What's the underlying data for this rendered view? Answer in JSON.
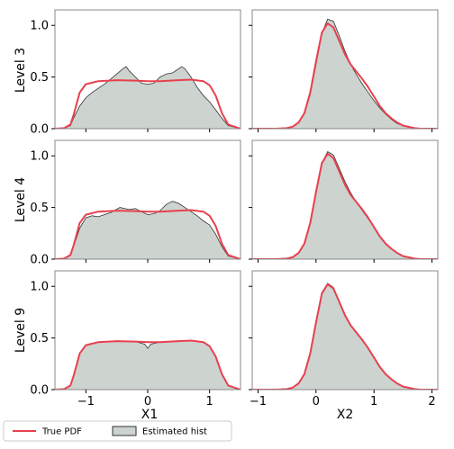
{
  "chart_data": {
    "type": "area",
    "row_labels": [
      "Level 3",
      "Level 4",
      "Level 9"
    ],
    "column_xlabels": [
      "X1",
      "X2"
    ],
    "ylim": [
      0,
      1.15
    ],
    "yticks": [
      0.0,
      0.5,
      1.0
    ],
    "ytick_labels": [
      "0.0",
      "0.5",
      "1.0"
    ],
    "xlim": [
      [
        -1.5,
        1.5
      ],
      [
        -1.1,
        2.1
      ]
    ],
    "xticks": [
      [
        -1,
        0,
        1
      ],
      [
        -1,
        0,
        1,
        2
      ]
    ],
    "xtick_labels": [
      [
        "−1",
        "0",
        "1"
      ],
      [
        "−1",
        "0",
        "1",
        "2"
      ]
    ],
    "legend": {
      "placement": "below",
      "true_pdf_label": "True PDF",
      "hist_label": "Estimated hist"
    },
    "colors": {
      "true_pdf": "#e8404e",
      "hist_fill": "#cdd3cf",
      "hist_edge": "#333333",
      "axes": "#888888"
    },
    "true_pdf": [
      {
        "x": [
          -1.5,
          -1.35,
          -1.25,
          -1.2,
          -1.1,
          -1.0,
          -0.8,
          -0.5,
          -0.2,
          0.0,
          0.2,
          0.5,
          0.7,
          0.9,
          1.0,
          1.1,
          1.2,
          1.3,
          1.5
        ],
        "y": [
          0,
          0.005,
          0.04,
          0.13,
          0.35,
          0.43,
          0.46,
          0.47,
          0.465,
          0.46,
          0.46,
          0.47,
          0.475,
          0.46,
          0.42,
          0.32,
          0.15,
          0.04,
          0
        ]
      },
      {
        "x": [
          -1.1,
          -0.7,
          -0.5,
          -0.4,
          -0.3,
          -0.2,
          -0.1,
          0.0,
          0.1,
          0.2,
          0.3,
          0.4,
          0.5,
          0.6,
          0.7,
          0.8,
          0.9,
          1.0,
          1.1,
          1.2,
          1.3,
          1.4,
          1.5,
          1.7,
          1.8,
          2.1
        ],
        "y": [
          0,
          0,
          0.005,
          0.02,
          0.06,
          0.15,
          0.35,
          0.65,
          0.93,
          1.02,
          0.98,
          0.85,
          0.72,
          0.62,
          0.55,
          0.48,
          0.4,
          0.31,
          0.22,
          0.15,
          0.1,
          0.06,
          0.03,
          0.005,
          0,
          0
        ]
      }
    ],
    "estimated_hist": [
      [
        {
          "x": [
            -1.5,
            -1.35,
            -1.25,
            -1.2,
            -1.1,
            -1.0,
            -0.9,
            -0.7,
            -0.5,
            -0.4,
            -0.35,
            -0.3,
            -0.2,
            -0.1,
            0.0,
            0.1,
            0.2,
            0.3,
            0.4,
            0.5,
            0.55,
            0.6,
            0.7,
            0.8,
            0.9,
            1.0,
            1.1,
            1.2,
            1.3,
            1.5
          ],
          "y": [
            0,
            0.005,
            0.03,
            0.1,
            0.22,
            0.3,
            0.35,
            0.43,
            0.53,
            0.58,
            0.6,
            0.56,
            0.5,
            0.44,
            0.43,
            0.44,
            0.5,
            0.53,
            0.54,
            0.58,
            0.6,
            0.58,
            0.5,
            0.4,
            0.32,
            0.26,
            0.18,
            0.1,
            0.03,
            0
          ]
        },
        {
          "x": [
            -1.1,
            -0.5,
            -0.4,
            -0.3,
            -0.2,
            -0.1,
            0.0,
            0.1,
            0.2,
            0.3,
            0.4,
            0.5,
            0.6,
            0.7,
            0.8,
            0.9,
            1.0,
            1.1,
            1.2,
            1.3,
            1.4,
            1.5,
            1.7,
            1.8,
            2.1
          ],
          "y": [
            0,
            0.005,
            0.02,
            0.06,
            0.15,
            0.33,
            0.62,
            0.92,
            1.06,
            1.04,
            0.9,
            0.75,
            0.62,
            0.52,
            0.43,
            0.35,
            0.27,
            0.2,
            0.14,
            0.09,
            0.05,
            0.03,
            0.005,
            0,
            0
          ]
        }
      ],
      [
        {
          "x": [
            -1.5,
            -1.35,
            -1.25,
            -1.2,
            -1.1,
            -1.0,
            -0.9,
            -0.8,
            -0.6,
            -0.45,
            -0.3,
            -0.2,
            -0.1,
            0.0,
            0.1,
            0.2,
            0.3,
            0.4,
            0.5,
            0.6,
            0.7,
            0.8,
            0.9,
            1.0,
            1.1,
            1.2,
            1.3,
            1.5
          ],
          "y": [
            0,
            0.005,
            0.04,
            0.12,
            0.3,
            0.4,
            0.42,
            0.41,
            0.45,
            0.5,
            0.48,
            0.49,
            0.46,
            0.43,
            0.44,
            0.47,
            0.53,
            0.56,
            0.54,
            0.5,
            0.46,
            0.42,
            0.37,
            0.33,
            0.24,
            0.12,
            0.03,
            0
          ]
        },
        {
          "x": [
            -1.1,
            -0.5,
            -0.4,
            -0.3,
            -0.2,
            -0.1,
            0.0,
            0.1,
            0.2,
            0.3,
            0.4,
            0.5,
            0.6,
            0.7,
            0.8,
            0.9,
            1.0,
            1.1,
            1.2,
            1.3,
            1.4,
            1.5,
            1.7,
            1.8,
            2.1
          ],
          "y": [
            0,
            0.005,
            0.02,
            0.06,
            0.15,
            0.34,
            0.64,
            0.93,
            1.04,
            1.01,
            0.88,
            0.75,
            0.64,
            0.55,
            0.47,
            0.39,
            0.31,
            0.22,
            0.15,
            0.1,
            0.06,
            0.03,
            0.005,
            0,
            0
          ]
        }
      ],
      [
        {
          "x": [
            -1.5,
            -1.35,
            -1.25,
            -1.2,
            -1.1,
            -1.0,
            -0.8,
            -0.5,
            -0.2,
            -0.05,
            0.0,
            0.05,
            0.2,
            0.5,
            0.7,
            0.9,
            1.0,
            1.1,
            1.2,
            1.3,
            1.5
          ],
          "y": [
            0,
            0.005,
            0.04,
            0.13,
            0.35,
            0.43,
            0.46,
            0.47,
            0.465,
            0.44,
            0.4,
            0.44,
            0.46,
            0.47,
            0.475,
            0.46,
            0.42,
            0.32,
            0.15,
            0.04,
            0
          ]
        },
        {
          "x": [
            -1.1,
            -0.7,
            -0.5,
            -0.4,
            -0.3,
            -0.2,
            -0.1,
            0.0,
            0.1,
            0.2,
            0.3,
            0.4,
            0.5,
            0.6,
            0.7,
            0.8,
            0.9,
            1.0,
            1.1,
            1.2,
            1.3,
            1.4,
            1.5,
            1.7,
            1.8,
            2.1
          ],
          "y": [
            0,
            0,
            0.005,
            0.02,
            0.06,
            0.15,
            0.35,
            0.66,
            0.94,
            1.03,
            0.99,
            0.86,
            0.72,
            0.62,
            0.55,
            0.48,
            0.4,
            0.31,
            0.22,
            0.15,
            0.1,
            0.06,
            0.03,
            0.005,
            0,
            0
          ]
        }
      ]
    ]
  }
}
